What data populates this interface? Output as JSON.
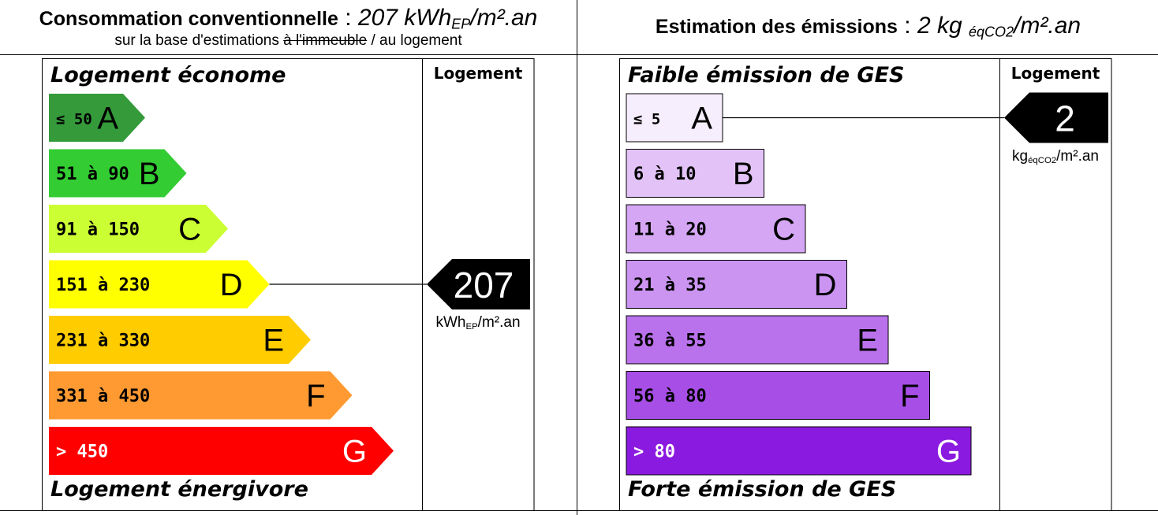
{
  "energy": {
    "title_bold": "Consommation conventionnelle",
    "title_sep": " : ",
    "title_value": "207 kWh",
    "title_unit_sub": "EP",
    "title_unit_rest": "/m².an",
    "subtitle_before": "sur la base d'estimations ",
    "subtitle_struck": "à l'immeuble",
    "subtitle_after": " / au logement",
    "top_caption": "Logement économe",
    "bottom_caption": "Logement énergivore",
    "column_header": "Logement",
    "unit_main": "kWh",
    "unit_sub": "EP",
    "unit_rest": "/m².an"
  },
  "emissions": {
    "title_bold": "Estimation des émissions",
    "title_sep": " : ",
    "title_value": "2 kg ",
    "title_unit_sub": "éqCO2",
    "title_unit_rest": "/m².an",
    "top_caption": "Faible émission de GES",
    "bottom_caption": "Forte émission de GES",
    "column_header": "Logement",
    "unit_main": "kg",
    "unit_sub": "éqCO2",
    "unit_rest": "/m².an"
  },
  "chart_data": [
    {
      "type": "bar",
      "categories": [
        "A",
        "B",
        "C",
        "D",
        "E",
        "F",
        "G"
      ],
      "ranges": [
        "≤ 50",
        "51 à 90",
        "91 à 150",
        "151 à 230",
        "231 à 330",
        "331 à 450",
        "> 450"
      ],
      "colors": [
        "#349a3a",
        "#33cc33",
        "#ccff33",
        "#ffff00",
        "#ffcc00",
        "#ff9a33",
        "#ff0000"
      ],
      "value": 207,
      "value_label": "207",
      "value_class": "D"
    },
    {
      "type": "bar",
      "categories": [
        "A",
        "B",
        "C",
        "D",
        "E",
        "F",
        "G"
      ],
      "ranges": [
        "≤ 5",
        "6 à 10",
        "11 à 20",
        "21 à 35",
        "36 à 55",
        "56 à 80",
        "> 80"
      ],
      "colors": [
        "#f6edfd",
        "#e3c3f7",
        "#d5a6f4",
        "#cb94f1",
        "#ba72ec",
        "#a74ee7",
        "#8b1ae0"
      ],
      "value": 2,
      "value_label": "2",
      "value_class": "A"
    }
  ]
}
